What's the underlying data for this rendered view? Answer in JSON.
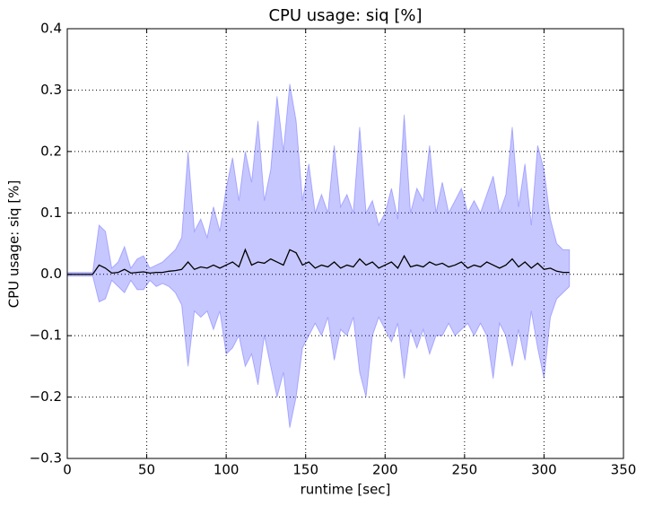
{
  "chart_data": {
    "type": "line",
    "title": "CPU usage: siq [%]",
    "xlabel": "runtime [sec]",
    "ylabel": "CPU usage: siq [%]",
    "x": [
      0,
      4,
      8,
      12,
      16,
      20,
      24,
      28,
      32,
      36,
      40,
      44,
      48,
      52,
      56,
      60,
      64,
      68,
      72,
      76,
      80,
      84,
      88,
      92,
      96,
      100,
      104,
      108,
      112,
      116,
      120,
      124,
      128,
      132,
      136,
      140,
      144,
      148,
      152,
      156,
      160,
      164,
      168,
      172,
      176,
      180,
      184,
      188,
      192,
      196,
      200,
      204,
      208,
      212,
      216,
      220,
      224,
      228,
      232,
      236,
      240,
      244,
      248,
      252,
      256,
      260,
      264,
      268,
      272,
      276,
      280,
      284,
      288,
      292,
      296,
      300,
      304,
      308,
      312,
      316
    ],
    "y": [
      0,
      0,
      0,
      0,
      0,
      0.015,
      0.01,
      0.002,
      0.003,
      0.008,
      0.002,
      0.003,
      0.004,
      0.002,
      0.003,
      0.003,
      0.005,
      0.006,
      0.008,
      0.02,
      0.008,
      0.012,
      0.01,
      0.015,
      0.01,
      0.015,
      0.02,
      0.012,
      0.04,
      0.015,
      0.02,
      0.018,
      0.025,
      0.02,
      0.015,
      0.04,
      0.035,
      0.015,
      0.02,
      0.01,
      0.015,
      0.012,
      0.02,
      0.01,
      0.015,
      0.012,
      0.025,
      0.015,
      0.02,
      0.01,
      0.015,
      0.02,
      0.01,
      0.03,
      0.012,
      0.015,
      0.012,
      0.02,
      0.015,
      0.018,
      0.012,
      0.015,
      0.02,
      0.01,
      0.015,
      0.012,
      0.02,
      0.015,
      0.01,
      0.015,
      0.025,
      0.012,
      0.02,
      0.01,
      0.018,
      0.008,
      0.01,
      0.005,
      0.003,
      0.003
    ],
    "y_upper": [
      0.003,
      0.003,
      0.003,
      0.003,
      0.003,
      0.08,
      0.07,
      0.01,
      0.02,
      0.045,
      0.01,
      0.025,
      0.03,
      0.01,
      0.015,
      0.02,
      0.03,
      0.04,
      0.06,
      0.2,
      0.07,
      0.09,
      0.06,
      0.11,
      0.07,
      0.14,
      0.19,
      0.12,
      0.2,
      0.15,
      0.25,
      0.12,
      0.17,
      0.29,
      0.2,
      0.31,
      0.25,
      0.12,
      0.18,
      0.1,
      0.13,
      0.1,
      0.21,
      0.11,
      0.13,
      0.1,
      0.24,
      0.1,
      0.12,
      0.08,
      0.1,
      0.14,
      0.09,
      0.26,
      0.1,
      0.14,
      0.12,
      0.21,
      0.1,
      0.15,
      0.1,
      0.12,
      0.14,
      0.1,
      0.12,
      0.1,
      0.13,
      0.16,
      0.1,
      0.13,
      0.24,
      0.11,
      0.18,
      0.08,
      0.21,
      0.17,
      0.09,
      0.05,
      0.04,
      0.04
    ],
    "y_lower": [
      -0.003,
      -0.003,
      -0.003,
      -0.003,
      -0.003,
      -0.045,
      -0.04,
      -0.01,
      -0.02,
      -0.03,
      -0.01,
      -0.025,
      -0.025,
      -0.01,
      -0.02,
      -0.015,
      -0.02,
      -0.03,
      -0.05,
      -0.15,
      -0.06,
      -0.07,
      -0.06,
      -0.09,
      -0.06,
      -0.13,
      -0.12,
      -0.1,
      -0.15,
      -0.13,
      -0.18,
      -0.1,
      -0.15,
      -0.2,
      -0.16,
      -0.25,
      -0.2,
      -0.12,
      -0.1,
      -0.08,
      -0.1,
      -0.07,
      -0.14,
      -0.09,
      -0.1,
      -0.07,
      -0.16,
      -0.2,
      -0.1,
      -0.07,
      -0.09,
      -0.11,
      -0.08,
      -0.17,
      -0.09,
      -0.12,
      -0.09,
      -0.13,
      -0.1,
      -0.1,
      -0.08,
      -0.1,
      -0.09,
      -0.08,
      -0.1,
      -0.08,
      -0.1,
      -0.17,
      -0.08,
      -0.1,
      -0.15,
      -0.09,
      -0.14,
      -0.06,
      -0.12,
      -0.17,
      -0.07,
      -0.04,
      -0.03,
      -0.02
    ],
    "color": "#000000",
    "band_color": "#0000ff",
    "xlim": [
      0,
      350
    ],
    "xticks": [
      0,
      50,
      100,
      150,
      200,
      250,
      300,
      350
    ],
    "ylim": [
      -0.3,
      0.4
    ],
    "yticks": [
      {
        "value": -0.3,
        "label": "−0.3"
      },
      {
        "value": -0.2,
        "label": "−0.2"
      },
      {
        "value": -0.1,
        "label": "−0.1"
      },
      {
        "value": 0,
        "label": "0.0"
      },
      0.1,
      0.2,
      0.3,
      0.4
    ],
    "grid": true
  }
}
